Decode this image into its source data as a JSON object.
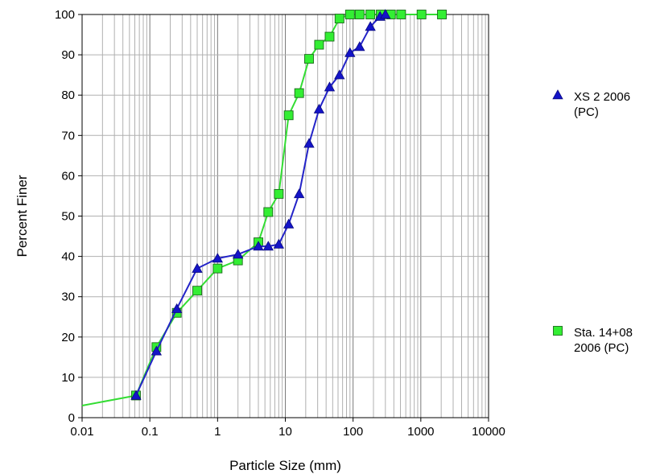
{
  "chart_data": {
    "type": "scatter",
    "xlabel": "Particle Size (mm)",
    "ylabel": "Percent Finer",
    "xscale": "log",
    "xlim": [
      0.01,
      10000
    ],
    "ylim": [
      0,
      100
    ],
    "x_ticks": [
      "0.01",
      "0.1",
      "1",
      "10",
      "100",
      "1000",
      "10000"
    ],
    "y_ticks": [
      "0",
      "10",
      "20",
      "30",
      "40",
      "50",
      "60",
      "70",
      "80",
      "90",
      "100"
    ],
    "grid": "x-minor and y-major",
    "legend_position": "right",
    "series": [
      {
        "name_lines": [
          "XS 2 2006",
          "(PC)"
        ],
        "marker": "triangle",
        "color": "#1414c8",
        "line_color": "#2323c8",
        "points": [
          [
            0.0625,
            5.5
          ],
          [
            0.125,
            16.5
          ],
          [
            0.25,
            27
          ],
          [
            0.5,
            37
          ],
          [
            1,
            39.5
          ],
          [
            2,
            40.5
          ],
          [
            4,
            42.5
          ],
          [
            5.6,
            42.5
          ],
          [
            8,
            43
          ],
          [
            11.2,
            48
          ],
          [
            16,
            55.5
          ],
          [
            22.4,
            68
          ],
          [
            31.5,
            76.5
          ],
          [
            45,
            82
          ],
          [
            63,
            85
          ],
          [
            90,
            90.5
          ],
          [
            125,
            92
          ],
          [
            180,
            97
          ],
          [
            250,
            99.5
          ],
          [
            300,
            100
          ]
        ]
      },
      {
        "name_lines": [
          "Sta. 14+08",
          "2006 (PC)"
        ],
        "marker": "square",
        "color": "#33ee33",
        "line_color": "#33dd33",
        "points": [
          [
            0.01,
            3
          ],
          [
            0.0625,
            5.5
          ],
          [
            0.125,
            17.5
          ],
          [
            0.25,
            26
          ],
          [
            0.5,
            31.5
          ],
          [
            1,
            37
          ],
          [
            2,
            39
          ],
          [
            4,
            43.5
          ],
          [
            5.6,
            51
          ],
          [
            8,
            55.5
          ],
          [
            11.2,
            75
          ],
          [
            16,
            80.5
          ],
          [
            22.4,
            89
          ],
          [
            31.5,
            92.5
          ],
          [
            45,
            94.5
          ],
          [
            63,
            99
          ],
          [
            90,
            100
          ],
          [
            125,
            100
          ],
          [
            180,
            100
          ],
          [
            256,
            100
          ],
          [
            362,
            100
          ],
          [
            512,
            100
          ],
          [
            1024,
            100
          ],
          [
            2048,
            100
          ]
        ]
      }
    ]
  }
}
